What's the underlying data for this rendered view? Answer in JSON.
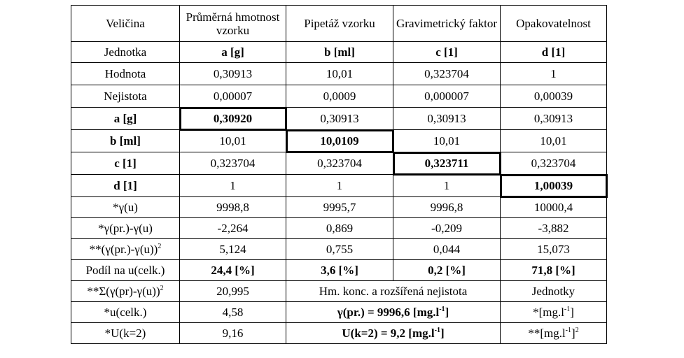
{
  "header": [
    "Veličina",
    "Průměrná hmotnost vzorku",
    "Pipetáž vzorku",
    "Gravimetrický faktor",
    "Opakovatelnost"
  ],
  "rows": [
    {
      "label": "Jednotka",
      "cells": [
        "a [g]",
        "b [ml]",
        "c [1]",
        "d [1]"
      ]
    },
    {
      "label": "Hodnota",
      "cells": [
        "0,30913",
        "10,01",
        "0,323704",
        "1"
      ]
    },
    {
      "label": "Nejistota",
      "cells": [
        "0,00007",
        "0,0009",
        "0,000007",
        "0,00039"
      ]
    },
    {
      "label": "a [g]",
      "cells": [
        "0,30920",
        "0,30913",
        "0,30913",
        "0,30913"
      ]
    },
    {
      "label": "b [ml]",
      "cells": [
        "10,01",
        "10,0109",
        "10,01",
        "10,01"
      ]
    },
    {
      "label": "c [1]",
      "cells": [
        "0,323704",
        "0,323704",
        "0,323711",
        "0,323704"
      ]
    },
    {
      "label": "d [1]",
      "cells": [
        "1",
        "1",
        "1",
        "1,00039"
      ]
    },
    {
      "label": "*γ(u)",
      "cells": [
        "9998,8",
        "9995,7",
        "9996,8",
        "10000,4"
      ]
    },
    {
      "label": "*γ(pr.)-γ(u)",
      "cells": [
        "-2,264",
        "0,869",
        "-0,209",
        "-3,882"
      ]
    },
    {
      "label_pre": "**(γ(pr.)-γ(u))",
      "label_sup": "2",
      "cells": [
        "5,124",
        "0,755",
        "0,044",
        "15,073"
      ]
    },
    {
      "label": "Podíl na u(celk.)",
      "cells": [
        "24,4 [%]",
        "3,6 [%]",
        "0,2 [%]",
        "71,8 [%]"
      ]
    }
  ],
  "summary": {
    "sum_label_pre": "**Σ(γ(pr)-γ(u))",
    "sum_label_sup": "2",
    "sum_value": "20,995",
    "conc_header": "Hm. konc. a rozšířená nejistota",
    "units_header": "Jednotky",
    "u_label": "*u(celk.)",
    "u_value": "4,58",
    "gamma_pre": "γ(pr.) = 9996,6 [mg.l",
    "gamma_sup": "-1",
    "gamma_post": "]",
    "u_unit_pre": "*[mg.l",
    "u_unit_sup": "-1",
    "u_unit_post": "]",
    "U_label": "*U(k=2)",
    "U_value": "9,16",
    "U_conc_pre": "U(k=2) = 9,2 [mg.l",
    "U_conc_sup": "-1",
    "U_conc_post": "]",
    "U_unit_pre": "**[mg.l",
    "U_unit_sup": "-1",
    "U_unit_post": "]",
    "U_unit_sup2": "2"
  }
}
